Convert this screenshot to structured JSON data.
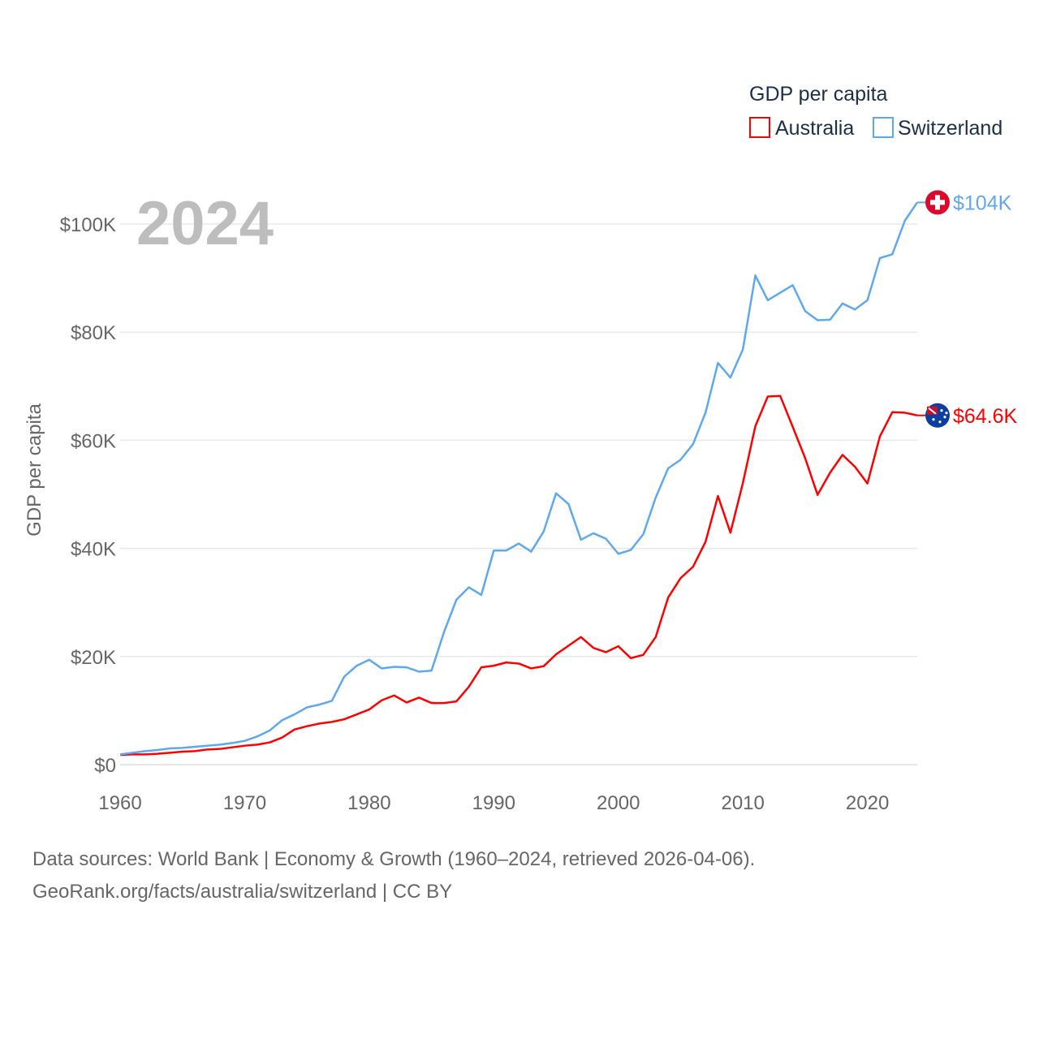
{
  "chart_data": {
    "type": "line",
    "title": "GDP per capita",
    "ylabel": "GDP per capita",
    "year_label": "2024",
    "ylim": [
      0,
      100000
    ],
    "xlim": [
      1960,
      2024
    ],
    "y_ticks": [
      {
        "v": 0,
        "label": "$0"
      },
      {
        "v": 20000,
        "label": "$20K"
      },
      {
        "v": 40000,
        "label": "$40K"
      },
      {
        "v": 60000,
        "label": "$60K"
      },
      {
        "v": 80000,
        "label": "$80K"
      },
      {
        "v": 100000,
        "label": "$100K"
      }
    ],
    "x_ticks": [
      {
        "v": 1960,
        "label": "1960"
      },
      {
        "v": 1970,
        "label": "1970"
      },
      {
        "v": 1980,
        "label": "1980"
      },
      {
        "v": 1990,
        "label": "1990"
      },
      {
        "v": 2000,
        "label": "2000"
      },
      {
        "v": 2010,
        "label": "2010"
      },
      {
        "v": 2020,
        "label": "2020"
      }
    ],
    "grid": true,
    "legend_position": "top-right",
    "series": [
      {
        "name": "Australia",
        "color": "#ff0000",
        "end_label": "$64.6K",
        "icon": "australia-flag-icon",
        "values": [
          1.8,
          1.9,
          1.9,
          2.0,
          2.2,
          2.4,
          2.5,
          2.8,
          2.9,
          3.2,
          3.5,
          3.7,
          4.1,
          5.0,
          6.5,
          7.1,
          7.6,
          7.9,
          8.4,
          9.3,
          10.2,
          11.9,
          12.8,
          11.5,
          12.4,
          11.4,
          11.4,
          11.7,
          14.4,
          18.0,
          18.3,
          18.9,
          18.7,
          17.8,
          18.2,
          20.4,
          22.0,
          23.6,
          21.6,
          20.8,
          21.9,
          19.7,
          20.3,
          23.6,
          30.9,
          34.5,
          36.6,
          41.2,
          49.7,
          42.9,
          52.1,
          62.6,
          68.1,
          68.2,
          62.5,
          56.7,
          49.9,
          54.0,
          57.3,
          55.1,
          52.0,
          60.7,
          65.2,
          65.1,
          64.6
        ]
      },
      {
        "name": "Switzerland",
        "color": "#5ea8ee",
        "end_label": "$104K",
        "icon": "switzerland-flag-icon",
        "values": [
          1.9,
          2.2,
          2.5,
          2.7,
          3.0,
          3.1,
          3.3,
          3.5,
          3.7,
          4.0,
          4.4,
          5.2,
          6.3,
          8.2,
          9.3,
          10.6,
          11.1,
          11.8,
          16.3,
          18.3,
          19.4,
          17.8,
          18.1,
          18.0,
          17.2,
          17.4,
          24.5,
          30.5,
          32.8,
          31.4,
          39.6,
          39.6,
          40.9,
          39.4,
          43.1,
          50.2,
          48.2,
          41.6,
          42.8,
          41.8,
          39.0,
          39.7,
          42.6,
          49.4,
          54.8,
          56.4,
          59.3,
          65.1,
          74.3,
          71.6,
          76.8,
          90.5,
          85.9,
          87.3,
          88.7,
          83.9,
          82.2,
          82.3,
          85.3,
          84.2,
          85.9,
          93.7,
          94.4,
          100.6,
          104.0
        ]
      }
    ],
    "value_unit": "thousand USD"
  },
  "footer": {
    "line1": "Data sources: World Bank | Economy & Growth (1960–2024, retrieved 2026-04-06).",
    "line2": "GeoRank.org/facts/australia/switzerland | CC BY"
  }
}
